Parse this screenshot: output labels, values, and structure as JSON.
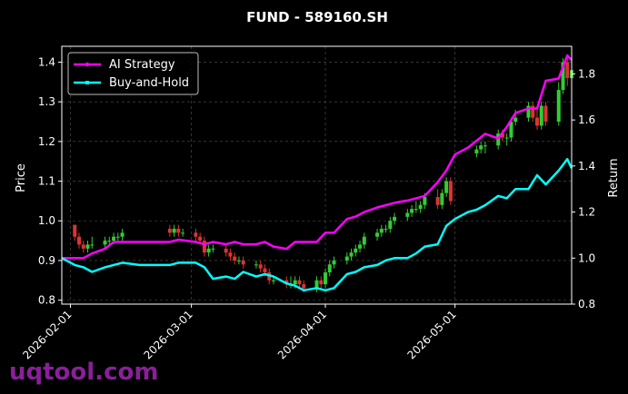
{
  "chart_data": {
    "type": "line",
    "title": "FUND - 589160.SH",
    "xlabel": "",
    "ylabel": "Price",
    "y2label": "Return",
    "xlim": [
      "2026-01-30",
      "2026-05-28"
    ],
    "ylim": [
      0.79,
      1.44
    ],
    "y2lim": [
      0.8,
      1.92
    ],
    "grid": true,
    "legend_position": "top-left",
    "x_ticks": [
      "2026-02-01",
      "2026-03-01",
      "2026-04-01",
      "2026-05-01"
    ],
    "y_ticks": [
      "0.8",
      "0.9",
      "1.0",
      "1.1",
      "1.2",
      "1.3",
      "1.4"
    ],
    "y2_ticks": [
      "0.8",
      "1.0",
      "1.2",
      "1.4",
      "1.6",
      "1.8"
    ],
    "colors": {
      "ai_strategy": "#ff00ff",
      "buy_and_hold": "#00ffff",
      "candle_up": "#33cc33",
      "candle_down": "#dd3333",
      "grid": "#555555"
    },
    "series": [
      {
        "name": "AI Strategy",
        "axis": "return",
        "x": [
          "2026-01-30",
          "2026-02-02",
          "2026-02-04",
          "2026-02-06",
          "2026-02-09",
          "2026-02-11",
          "2026-02-13",
          "2026-02-17",
          "2026-02-24",
          "2026-02-26",
          "2026-03-02",
          "2026-03-04",
          "2026-03-06",
          "2026-03-09",
          "2026-03-11",
          "2026-03-13",
          "2026-03-16",
          "2026-03-18",
          "2026-03-20",
          "2026-03-23",
          "2026-03-25",
          "2026-03-27",
          "2026-03-30",
          "2026-04-01",
          "2026-04-03",
          "2026-04-06",
          "2026-04-08",
          "2026-04-10",
          "2026-04-13",
          "2026-04-15",
          "2026-04-17",
          "2026-04-20",
          "2026-04-22",
          "2026-04-24",
          "2026-04-27",
          "2026-04-29",
          "2026-05-01",
          "2026-05-04",
          "2026-05-06",
          "2026-05-08",
          "2026-05-11",
          "2026-05-13",
          "2026-05-15",
          "2026-05-18",
          "2026-05-20",
          "2026-05-22",
          "2026-05-25",
          "2026-05-27",
          "2026-05-28"
        ],
        "values": [
          1.0,
          1.0,
          1.0,
          1.02,
          1.04,
          1.07,
          1.07,
          1.07,
          1.07,
          1.08,
          1.07,
          1.06,
          1.07,
          1.06,
          1.07,
          1.06,
          1.06,
          1.07,
          1.05,
          1.04,
          1.07,
          1.07,
          1.07,
          1.11,
          1.11,
          1.17,
          1.18,
          1.2,
          1.22,
          1.23,
          1.24,
          1.25,
          1.26,
          1.27,
          1.33,
          1.38,
          1.45,
          1.48,
          1.51,
          1.54,
          1.52,
          1.57,
          1.63,
          1.65,
          1.65,
          1.77,
          1.78,
          1.88,
          1.86
        ]
      },
      {
        "name": "Buy-and-Hold",
        "axis": "return",
        "x": [
          "2026-01-30",
          "2026-02-02",
          "2026-02-04",
          "2026-02-06",
          "2026-02-09",
          "2026-02-11",
          "2026-02-13",
          "2026-02-17",
          "2026-02-24",
          "2026-02-26",
          "2026-03-02",
          "2026-03-04",
          "2026-03-06",
          "2026-03-09",
          "2026-03-11",
          "2026-03-13",
          "2026-03-16",
          "2026-03-18",
          "2026-03-20",
          "2026-03-23",
          "2026-03-25",
          "2026-03-27",
          "2026-03-30",
          "2026-04-01",
          "2026-04-03",
          "2026-04-06",
          "2026-04-08",
          "2026-04-10",
          "2026-04-13",
          "2026-04-15",
          "2026-04-17",
          "2026-04-20",
          "2026-04-22",
          "2026-04-24",
          "2026-04-27",
          "2026-04-29",
          "2026-05-01",
          "2026-05-04",
          "2026-05-06",
          "2026-05-08",
          "2026-05-11",
          "2026-05-13",
          "2026-05-15",
          "2026-05-18",
          "2026-05-20",
          "2026-05-22",
          "2026-05-25",
          "2026-05-27",
          "2026-05-28"
        ],
        "values": [
          1.0,
          0.97,
          0.96,
          0.94,
          0.96,
          0.97,
          0.98,
          0.97,
          0.97,
          0.98,
          0.98,
          0.96,
          0.91,
          0.92,
          0.91,
          0.94,
          0.92,
          0.93,
          0.92,
          0.89,
          0.88,
          0.86,
          0.87,
          0.86,
          0.87,
          0.93,
          0.94,
          0.96,
          0.97,
          0.99,
          1.0,
          1.0,
          1.02,
          1.05,
          1.06,
          1.14,
          1.17,
          1.2,
          1.21,
          1.23,
          1.27,
          1.26,
          1.3,
          1.3,
          1.36,
          1.32,
          1.38,
          1.43,
          1.39
        ]
      },
      {
        "name": "",
        "kind": "candlestick",
        "axis": "price",
        "x": [
          "2026-02-02",
          "2026-02-03",
          "2026-02-04",
          "2026-02-05",
          "2026-02-06",
          "2026-02-09",
          "2026-02-10",
          "2026-02-11",
          "2026-02-12",
          "2026-02-13",
          "2026-02-24",
          "2026-02-25",
          "2026-02-26",
          "2026-02-27",
          "2026-03-02",
          "2026-03-03",
          "2026-03-04",
          "2026-03-05",
          "2026-03-06",
          "2026-03-09",
          "2026-03-10",
          "2026-03-11",
          "2026-03-12",
          "2026-03-13",
          "2026-03-16",
          "2026-03-17",
          "2026-03-18",
          "2026-03-19",
          "2026-03-20",
          "2026-03-23",
          "2026-03-24",
          "2026-03-25",
          "2026-03-26",
          "2026-03-27",
          "2026-03-30",
          "2026-03-31",
          "2026-04-01",
          "2026-04-02",
          "2026-04-03",
          "2026-04-06",
          "2026-04-07",
          "2026-04-08",
          "2026-04-09",
          "2026-04-10",
          "2026-04-13",
          "2026-04-14",
          "2026-04-15",
          "2026-04-16",
          "2026-04-17",
          "2026-04-20",
          "2026-04-21",
          "2026-04-22",
          "2026-04-23",
          "2026-04-24",
          "2026-04-27",
          "2026-04-28",
          "2026-04-29",
          "2026-04-30",
          "2026-05-06",
          "2026-05-07",
          "2026-05-08",
          "2026-05-11",
          "2026-05-12",
          "2026-05-13",
          "2026-05-14",
          "2026-05-15",
          "2026-05-18",
          "2026-05-19",
          "2026-05-20",
          "2026-05-21",
          "2026-05-22",
          "2026-05-25",
          "2026-05-26",
          "2026-05-27",
          "2026-05-28"
        ],
        "open": [
          0.99,
          0.96,
          0.94,
          0.93,
          0.94,
          0.94,
          0.95,
          0.95,
          0.96,
          0.96,
          0.98,
          0.97,
          0.98,
          0.97,
          0.97,
          0.96,
          0.95,
          0.92,
          0.93,
          0.93,
          0.92,
          0.91,
          0.9,
          0.9,
          0.89,
          0.89,
          0.88,
          0.87,
          0.85,
          0.85,
          0.84,
          0.84,
          0.85,
          0.84,
          0.83,
          0.85,
          0.84,
          0.87,
          0.89,
          0.9,
          0.91,
          0.92,
          0.93,
          0.94,
          0.96,
          0.97,
          0.98,
          0.98,
          1.0,
          1.01,
          1.02,
          1.03,
          1.03,
          1.04,
          1.06,
          1.04,
          1.07,
          1.1,
          1.17,
          1.18,
          1.19,
          1.19,
          1.22,
          1.21,
          1.21,
          1.25,
          1.26,
          1.29,
          1.26,
          1.24,
          1.29,
          1.25,
          1.33,
          1.4,
          1.36
        ],
        "close": [
          0.96,
          0.94,
          0.93,
          0.94,
          0.94,
          0.95,
          0.95,
          0.96,
          0.96,
          0.97,
          0.97,
          0.98,
          0.97,
          0.97,
          0.96,
          0.95,
          0.92,
          0.93,
          0.93,
          0.92,
          0.91,
          0.9,
          0.9,
          0.89,
          0.89,
          0.88,
          0.87,
          0.85,
          0.85,
          0.84,
          0.84,
          0.85,
          0.84,
          0.83,
          0.85,
          0.84,
          0.87,
          0.89,
          0.9,
          0.91,
          0.92,
          0.93,
          0.94,
          0.96,
          0.97,
          0.98,
          0.98,
          1.0,
          1.01,
          1.02,
          1.03,
          1.03,
          1.04,
          1.06,
          1.04,
          1.07,
          1.1,
          1.05,
          1.18,
          1.19,
          1.19,
          1.22,
          1.21,
          1.21,
          1.25,
          1.26,
          1.29,
          1.26,
          1.24,
          1.29,
          1.25,
          1.33,
          1.4,
          1.36,
          1.38
        ],
        "high": [
          0.99,
          0.97,
          0.95,
          0.95,
          0.96,
          0.96,
          0.96,
          0.97,
          0.97,
          0.98,
          0.99,
          0.99,
          0.99,
          0.98,
          0.98,
          0.97,
          0.96,
          0.94,
          0.94,
          0.94,
          0.93,
          0.92,
          0.91,
          0.91,
          0.9,
          0.9,
          0.89,
          0.88,
          0.86,
          0.86,
          0.86,
          0.86,
          0.86,
          0.85,
          0.86,
          0.86,
          0.88,
          0.9,
          0.91,
          0.92,
          0.93,
          0.94,
          0.95,
          0.97,
          0.98,
          0.99,
          0.99,
          1.01,
          1.02,
          1.03,
          1.04,
          1.05,
          1.05,
          1.07,
          1.08,
          1.08,
          1.11,
          1.11,
          1.19,
          1.2,
          1.2,
          1.23,
          1.23,
          1.22,
          1.26,
          1.28,
          1.3,
          1.3,
          1.28,
          1.3,
          1.3,
          1.35,
          1.41,
          1.41,
          1.4
        ],
        "low": [
          0.95,
          0.93,
          0.92,
          0.92,
          0.93,
          0.93,
          0.94,
          0.94,
          0.95,
          0.95,
          0.96,
          0.96,
          0.96,
          0.96,
          0.95,
          0.94,
          0.91,
          0.91,
          0.92,
          0.91,
          0.9,
          0.89,
          0.89,
          0.88,
          0.88,
          0.87,
          0.86,
          0.84,
          0.84,
          0.83,
          0.83,
          0.83,
          0.83,
          0.82,
          0.82,
          0.83,
          0.83,
          0.86,
          0.88,
          0.89,
          0.9,
          0.91,
          0.92,
          0.93,
          0.95,
          0.96,
          0.97,
          0.97,
          0.99,
          1.0,
          1.01,
          1.02,
          1.02,
          1.03,
          1.03,
          1.03,
          1.06,
          1.04,
          1.16,
          1.17,
          1.17,
          1.18,
          1.2,
          1.19,
          1.2,
          1.24,
          1.25,
          1.25,
          1.23,
          1.23,
          1.24,
          1.24,
          1.32,
          1.34,
          1.34
        ]
      }
    ],
    "watermark": "uqtool.com"
  }
}
